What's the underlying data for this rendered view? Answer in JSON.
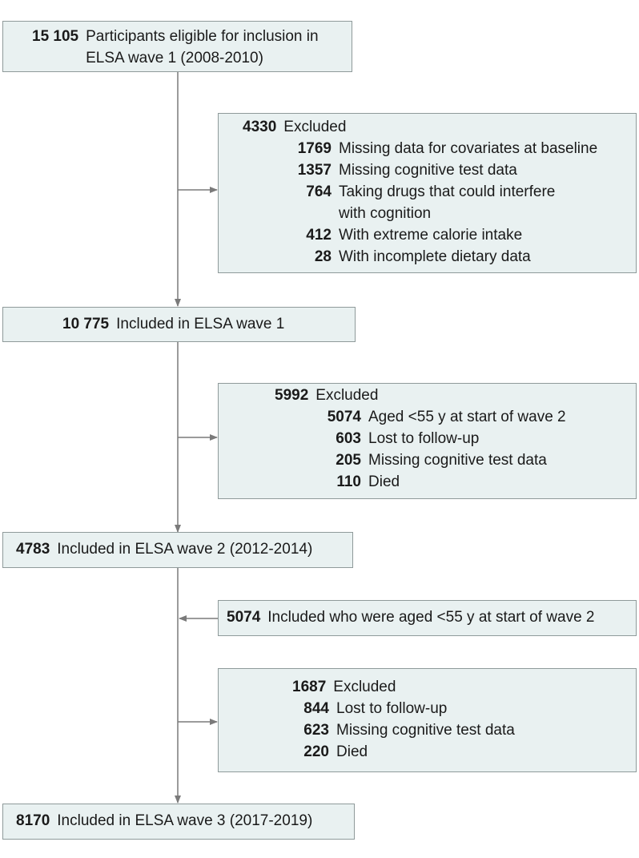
{
  "boxes": {
    "eligible": {
      "n": "15 105",
      "text": "Participants eligible for inclusion in ELSA wave 1 (2008-2010)"
    },
    "excluded1": {
      "n": "4330",
      "text": "Excluded",
      "items": [
        {
          "n": "1769",
          "text": "Missing data for covariates at baseline"
        },
        {
          "n": "1357",
          "text": "Missing cognitive test data"
        },
        {
          "n": "764",
          "text": "Taking drugs that could interfere with cognition"
        },
        {
          "n": "412",
          "text": "With extreme calorie intake"
        },
        {
          "n": "28",
          "text": "With incomplete dietary data"
        }
      ]
    },
    "wave1": {
      "n": "10 775",
      "text": "Included in ELSA wave 1"
    },
    "excluded2": {
      "n": "5992",
      "text": "Excluded",
      "items": [
        {
          "n": "5074",
          "text": "Aged <55 y at start of wave 2"
        },
        {
          "n": "603",
          "text": "Lost to follow-up"
        },
        {
          "n": "205",
          "text": "Missing cognitive test data"
        },
        {
          "n": "110",
          "text": "Died"
        }
      ]
    },
    "wave2": {
      "n": "4783",
      "text": "Included in ELSA wave 2 (2012-2014)"
    },
    "readded": {
      "n": "5074",
      "text": "Included who were aged <55 y at start of wave 2"
    },
    "excluded3": {
      "n": "1687",
      "text": "Excluded",
      "items": [
        {
          "n": "844",
          "text": "Lost to follow-up"
        },
        {
          "n": "623",
          "text": "Missing cognitive test data"
        },
        {
          "n": "220",
          "text": "Died"
        }
      ]
    },
    "wave3": {
      "n": "8170",
      "text": "Included in ELSA wave 3 (2017-2019)"
    }
  }
}
